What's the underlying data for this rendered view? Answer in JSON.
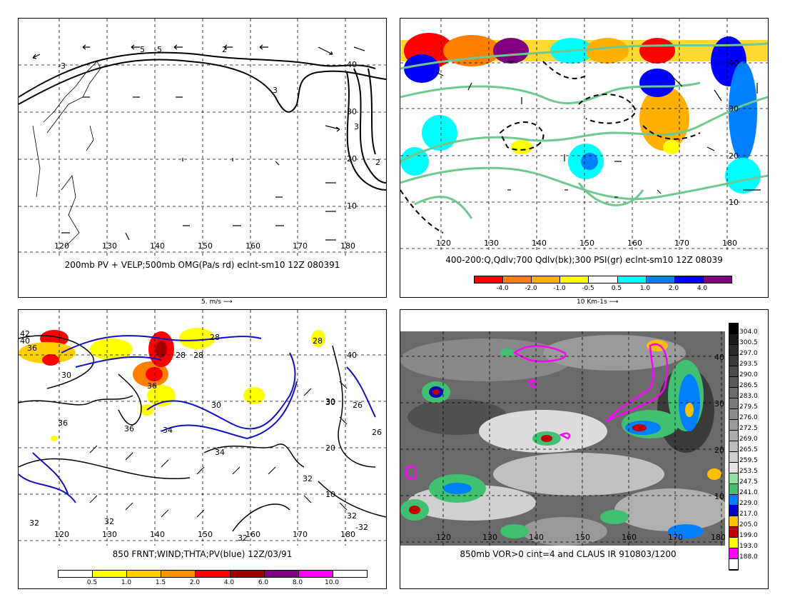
{
  "panels": {
    "p1": {
      "caption": "200mb PV + VELP;500mb OMG(Pa/s rd) eclnt-sm10 12Z 080391",
      "lon_labels": [
        "120",
        "130",
        "140",
        "150",
        "160",
        "170",
        "180"
      ],
      "lat_labels": [
        "40",
        "30",
        "20",
        "10"
      ],
      "contour_labels": [
        "5",
        "2",
        "3",
        "-3",
        "3",
        "2",
        "-5"
      ]
    },
    "p2": {
      "caption": "400-200:Q,Qdlv;700 Qdlv(bk);300 PSI(gr) eclnt-sm10 12Z 08039",
      "lon_labels": [
        "120",
        "130",
        "140",
        "150",
        "160",
        "170",
        "180"
      ],
      "lat_labels": [
        "40",
        "30",
        "20",
        "10"
      ],
      "colorbar_labels": [
        "-4.0",
        "-2.0",
        "-1.0",
        "-0.5",
        "0.5",
        "1.0",
        "2.0",
        "4.0"
      ],
      "colorbar_colors": [
        "#ff0000",
        "#ff8000",
        "#ffb000",
        "#ffff00",
        "#ffffff",
        "#00ffff",
        "#0080ff",
        "#0000ff",
        "#800080"
      ]
    },
    "p3": {
      "caption": "850 FRNT;WIND;THTA;PV(blue) 12Z/03/91",
      "lon_labels": [
        "120",
        "130",
        "140",
        "150",
        "160",
        "170",
        "180"
      ],
      "lat_labels": [
        "40",
        "30",
        "20",
        "10"
      ],
      "contour_labels": [
        "42",
        "40",
        "36",
        "30",
        "28",
        "36",
        "28",
        "28",
        "36",
        "30",
        "-34",
        "36",
        "34",
        "30",
        "28",
        "32",
        "32",
        "32",
        "-32",
        "32",
        "32",
        "26",
        "26"
      ],
      "colorbar_labels": [
        "0.5",
        "1.0",
        "1.5",
        "2.0",
        "4.0",
        "6.0",
        "8.0",
        "10.0"
      ],
      "colorbar_colors": [
        "#ffffff",
        "#ffff00",
        "#ffd000",
        "#ff9000",
        "#ff0000",
        "#a00000",
        "#800080",
        "#ff00ff",
        "#ffffff"
      ]
    },
    "p4": {
      "caption": "850mb VOR>0 cint=4 and CLAUS IR 910803/1200",
      "lon_labels": [
        "120",
        "130",
        "140",
        "150",
        "160",
        "170",
        "180"
      ],
      "lat_labels": [
        "40",
        "30",
        "20",
        "10"
      ],
      "colorbar_labels": [
        "304.0",
        "300.5",
        "297.0",
        "293.5",
        "290.0",
        "286.5",
        "283.0",
        "279.5",
        "276.0",
        "272.5",
        "269.0",
        "265.5",
        "259.5",
        "253.5",
        "247.5",
        "241.0",
        "229.0",
        "217.0",
        "205.0",
        "199.0",
        "193.0",
        "188.0"
      ],
      "colorbar_colors": [
        "#000000",
        "#1a1a1a",
        "#2a2a2a",
        "#3a3a3a",
        "#4a4a4a",
        "#5a5a5a",
        "#6a6a6a",
        "#7a7a7a",
        "#8a8a8a",
        "#9a9a9a",
        "#aaaaaa",
        "#bcbcbc",
        "#cfcfcf",
        "#e2e2e2",
        "#90e0a0",
        "#40c070",
        "#0080ff",
        "#0000c0",
        "#ffc000",
        "#c00000",
        "#ffff00",
        "#ff00ff",
        "#ffffff"
      ]
    }
  },
  "scales": {
    "p1": "5. m/s",
    "p2": "10 Km-1s"
  }
}
